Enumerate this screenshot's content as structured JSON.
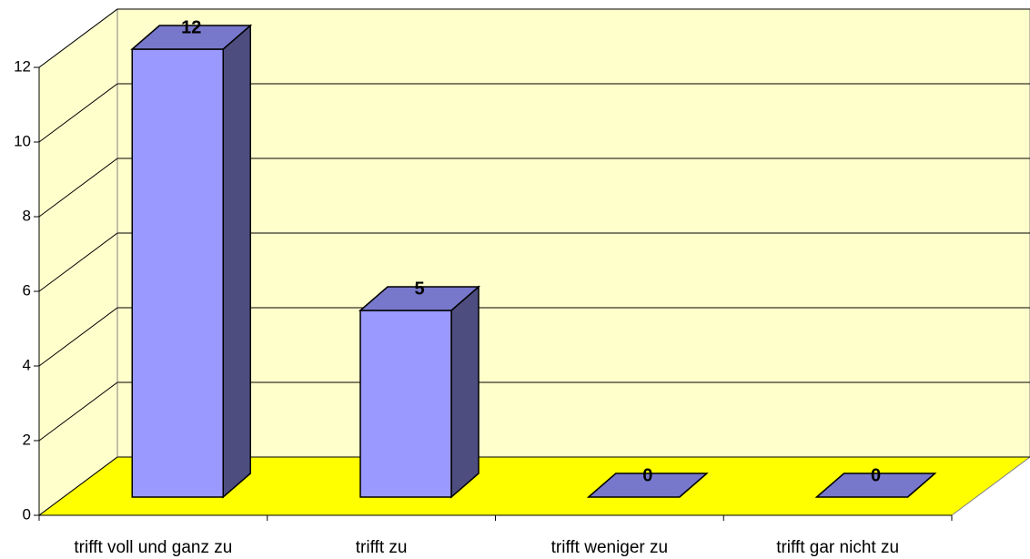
{
  "chart_data": {
    "type": "bar",
    "categories": [
      "trifft voll und ganz zu",
      "trifft zu",
      "trifft weniger zu",
      "trifft gar nicht zu"
    ],
    "values": [
      12,
      5,
      0,
      0
    ],
    "color": "#9999ff",
    "ylim": [
      0,
      12
    ],
    "yticks": [
      0,
      2,
      4,
      6,
      8,
      10,
      12
    ],
    "grid": true
  }
}
